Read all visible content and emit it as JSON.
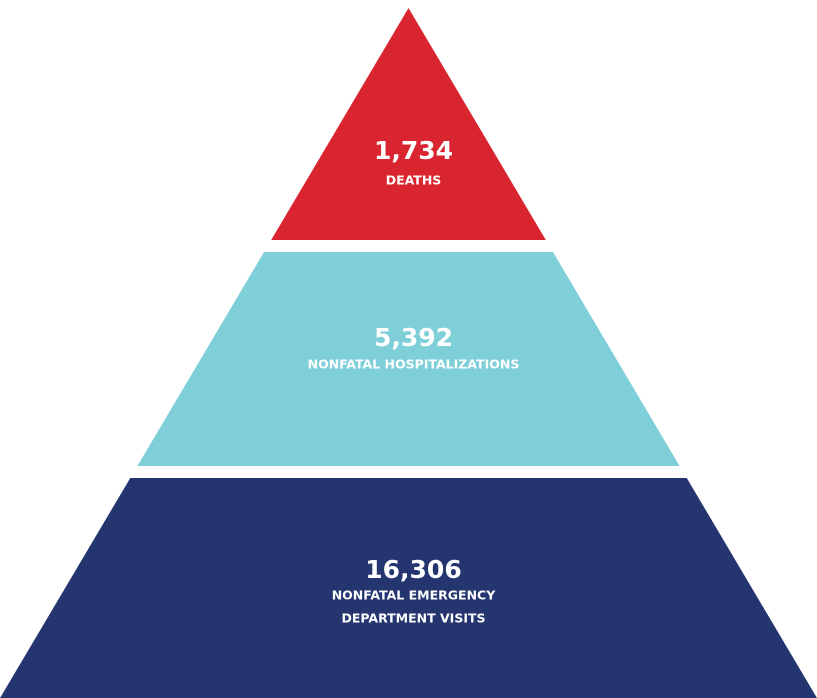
{
  "levels": [
    {
      "value": "1,734",
      "label": [
        "DEATHS"
      ],
      "color": "#d9252f"
    },
    {
      "value": "5,392",
      "label": [
        "NONFATAL HOSPITALIZATIONS"
      ],
      "color": "#7fcfd8"
    },
    {
      "value": "16,306",
      "label": [
        "NONFATAL EMERGENCY",
        "DEPARTMENT VISITS"
      ],
      "color": "#243570"
    }
  ]
}
